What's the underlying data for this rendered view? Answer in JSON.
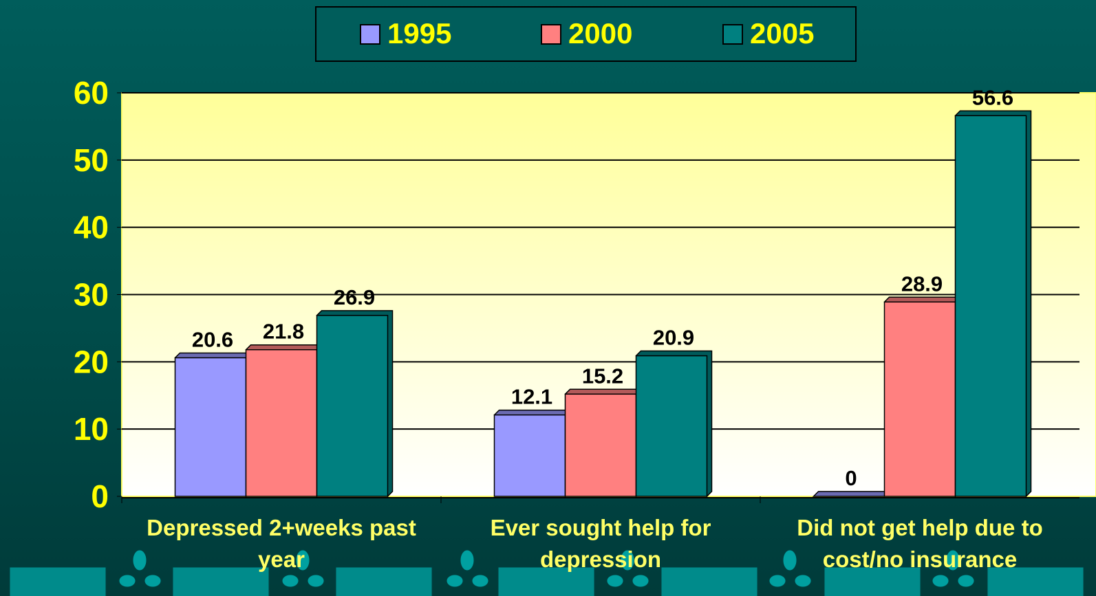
{
  "chart_data": {
    "type": "bar",
    "categories": [
      "Depressed 2+weeks past year",
      "Ever sought help for depression",
      "Did not get help due to cost/no insurance"
    ],
    "series": [
      {
        "name": "1995",
        "color": "#9999ff",
        "values": [
          20.6,
          12.1,
          0
        ]
      },
      {
        "name": "2000",
        "color": "#ff8080",
        "values": [
          21.8,
          15.2,
          28.9
        ]
      },
      {
        "name": "2005",
        "color": "#008080",
        "values": [
          26.9,
          20.9,
          56.6
        ]
      }
    ],
    "ylim": [
      0,
      60
    ],
    "yticks": [
      0,
      10,
      20,
      30,
      40,
      50,
      60
    ],
    "grid": true,
    "legend": "top"
  }
}
